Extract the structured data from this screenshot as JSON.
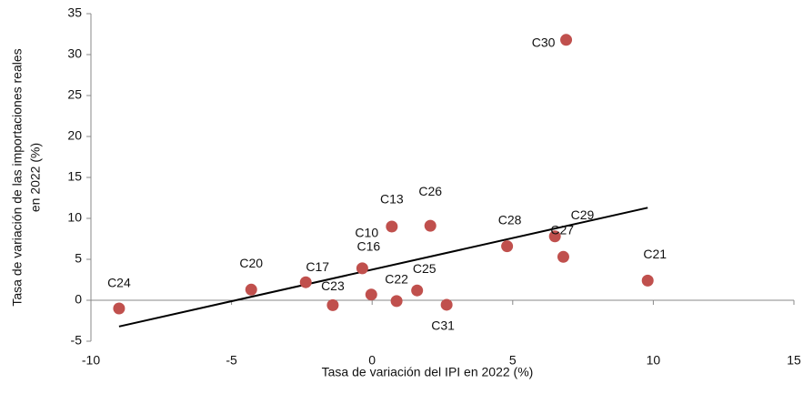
{
  "chart_data": {
    "type": "scatter",
    "x_label": "Tasa de variación del IPI en 2022 (%)",
    "y_label": [
      "Tasa de variación de las importaciones reales",
      "en 2022 (%)"
    ],
    "labels": [
      "C24",
      "C20",
      "C17",
      "C23",
      "C16",
      "C10",
      "C13",
      "C26",
      "C22",
      "C25",
      "C31",
      "C28",
      "C27",
      "C29",
      "C21",
      "C30"
    ],
    "x": [
      -9.0,
      -4.3,
      -2.36,
      -1.4,
      -0.35,
      -0.03,
      0.7,
      2.07,
      0.87,
      1.6,
      2.65,
      4.8,
      6.5,
      6.8,
      9.8,
      6.9
    ],
    "y": [
      -1.0,
      1.3,
      2.2,
      -0.6,
      3.9,
      0.7,
      9.0,
      9.1,
      -0.1,
      1.2,
      -0.55,
      6.6,
      7.8,
      5.3,
      2.4,
      31.8
    ],
    "color": "#c0504d",
    "trendline": {
      "x": [
        -9.0,
        9.8
      ],
      "y": [
        -3.2,
        11.3
      ],
      "color": "#000000"
    },
    "xlim": [
      -10,
      15
    ],
    "xticks": [
      -10,
      -5,
      0,
      5,
      10,
      15
    ],
    "ylim": [
      -5,
      35
    ],
    "yticks": [
      -5,
      0,
      5,
      10,
      15,
      20,
      25,
      30,
      35
    ],
    "grid": false
  }
}
